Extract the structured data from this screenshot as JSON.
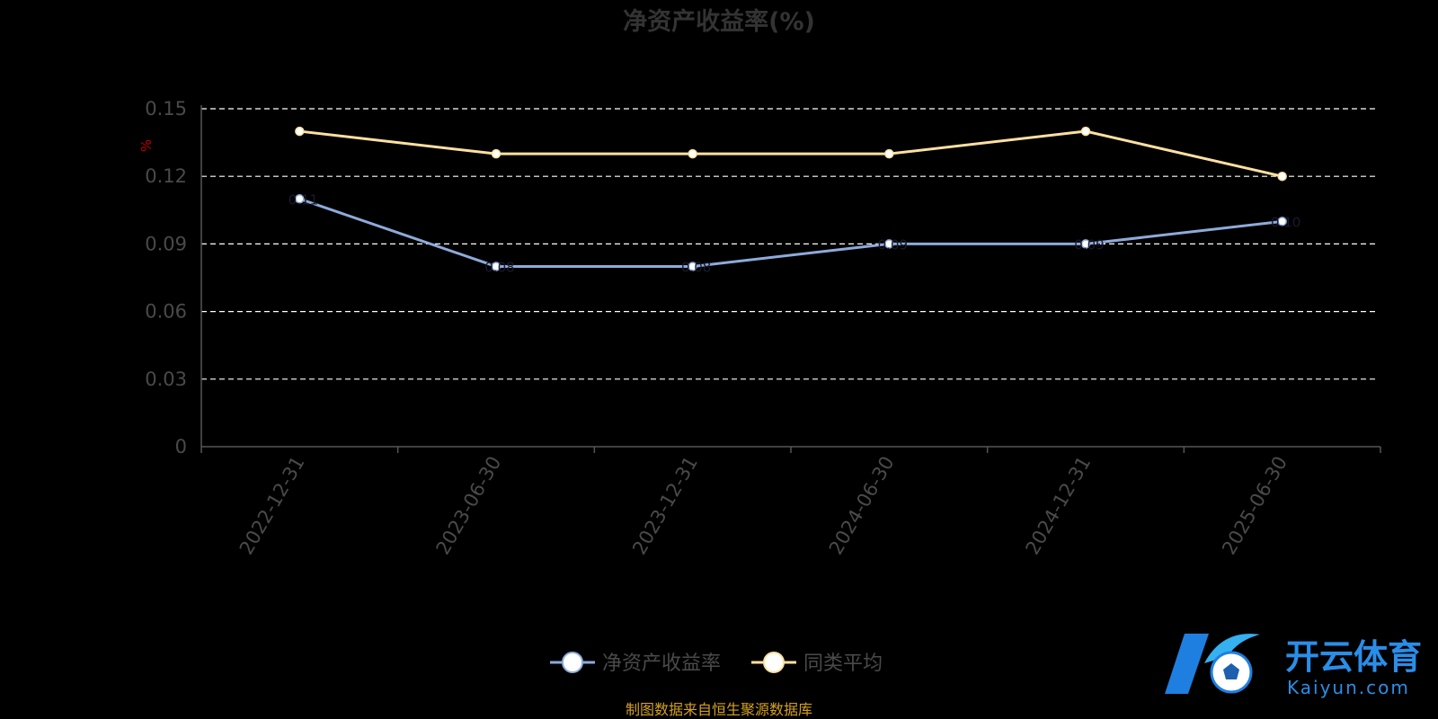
{
  "chart_data": {
    "type": "line",
    "title": "净资产收益率(%)",
    "ylabel": "%",
    "xlabel": "",
    "categories": [
      "2022-12-31",
      "2023-06-30",
      "2023-12-31",
      "2024-06-30",
      "2024-12-31",
      "2025-06-30"
    ],
    "ylim": [
      0,
      0.15
    ],
    "yticks": [
      "0",
      "0.03",
      "0.06",
      "0.09",
      "0.12",
      "0.15"
    ],
    "grid": true,
    "legend_position": "bottom",
    "series": [
      {
        "name": "净资产收益率",
        "color": "#8eaadb",
        "values": [
          0.11,
          0.08,
          0.08,
          0.09,
          0.09,
          0.1
        ]
      },
      {
        "name": "同类平均",
        "color": "#ffe0a0",
        "values": [
          0.14,
          0.13,
          0.13,
          0.13,
          0.14,
          0.12
        ]
      }
    ],
    "data_labels": [
      "0.11",
      "0.08",
      "0.08",
      "0.09",
      "0.09",
      "0.10"
    ]
  },
  "source_text": "制图数据来自恒生聚源数据库",
  "logo": {
    "cn": "开云体育",
    "en": "Kaiyun.com",
    "mark": "K"
  }
}
